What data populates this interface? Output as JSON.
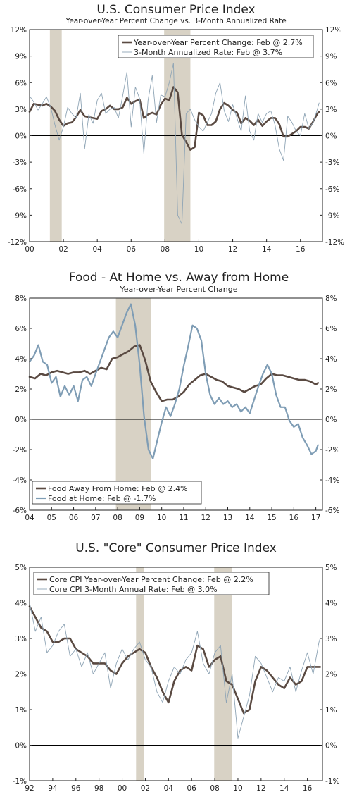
{
  "chart_data": [
    {
      "type": "line",
      "title": "U.S. Consumer Price Index",
      "subtitle": "Year-over-Year Percent Change vs. 3-Month Annualized Rate",
      "x_ticks": [
        "00",
        "02",
        "04",
        "06",
        "08",
        "10",
        "12",
        "14",
        "16"
      ],
      "x_tick_values": [
        2000,
        2002,
        2004,
        2006,
        2008,
        2010,
        2012,
        2014,
        2016
      ],
      "xlim": [
        2000,
        2017.3
      ],
      "ylim": [
        -12,
        12
      ],
      "y_ticks": [
        "-12%",
        "-9%",
        "-6%",
        "-3%",
        "0%",
        "3%",
        "6%",
        "9%",
        "12%"
      ],
      "y_tick_values": [
        -12,
        -9,
        -6,
        -3,
        0,
        3,
        6,
        9,
        12
      ],
      "recessions": [
        [
          2001.2,
          2001.9
        ],
        [
          2007.95,
          2009.5
        ]
      ],
      "legend_position": "top-right",
      "series": [
        {
          "name": "Year-over-Year Percent Change: Feb @ 2.7%",
          "color": "#5a4a42",
          "style": "thick",
          "x": [
            2000,
            2000.25,
            2000.5,
            2000.75,
            2001,
            2001.25,
            2001.5,
            2001.75,
            2002,
            2002.25,
            2002.5,
            2002.75,
            2003,
            2003.25,
            2003.5,
            2003.75,
            2004,
            2004.25,
            2004.5,
            2004.75,
            2005,
            2005.25,
            2005.5,
            2005.75,
            2006,
            2006.25,
            2006.5,
            2006.75,
            2007,
            2007.25,
            2007.5,
            2007.75,
            2008,
            2008.25,
            2008.5,
            2008.75,
            2009,
            2009.25,
            2009.5,
            2009.75,
            2010,
            2010.25,
            2010.5,
            2010.75,
            2011,
            2011.25,
            2011.5,
            2011.75,
            2012,
            2012.25,
            2012.5,
            2012.75,
            2013,
            2013.25,
            2013.5,
            2013.75,
            2014,
            2014.25,
            2014.5,
            2014.75,
            2015,
            2015.25,
            2015.5,
            2015.75,
            2016,
            2016.25,
            2016.5,
            2016.75,
            2017,
            2017.1
          ],
          "y": [
            2.7,
            3.6,
            3.5,
            3.4,
            3.6,
            3.3,
            2.8,
            1.8,
            1.1,
            1.4,
            1.5,
            2.1,
            2.9,
            2.2,
            2.1,
            2.0,
            1.9,
            2.8,
            3.0,
            3.4,
            3.0,
            3.0,
            3.2,
            4.3,
            3.6,
            3.9,
            4.1,
            2.0,
            2.4,
            2.6,
            2.4,
            3.5,
            4.2,
            4.0,
            5.5,
            4.9,
            0.1,
            -0.7,
            -1.6,
            -1.3,
            2.6,
            2.3,
            1.2,
            1.2,
            1.6,
            3.0,
            3.7,
            3.4,
            2.9,
            2.6,
            1.4,
            2.0,
            1.7,
            1.2,
            1.8,
            1.1,
            1.6,
            2.0,
            2.0,
            1.3,
            -0.1,
            -0.1,
            0.2,
            0.5,
            1.0,
            1.0,
            0.8,
            1.6,
            2.5,
            2.7
          ]
        },
        {
          "name": "3-Month Annualized Rate: Feb @ 3.7%",
          "color": "#8ea4b5",
          "style": "thin",
          "x": [
            2000,
            2000.25,
            2000.5,
            2000.75,
            2001,
            2001.25,
            2001.5,
            2001.75,
            2002,
            2002.25,
            2002.5,
            2002.75,
            2003,
            2003.25,
            2003.5,
            2003.75,
            2004,
            2004.25,
            2004.5,
            2004.75,
            2005,
            2005.25,
            2005.5,
            2005.75,
            2006,
            2006.25,
            2006.5,
            2006.75,
            2007,
            2007.25,
            2007.5,
            2007.75,
            2008,
            2008.25,
            2008.5,
            2008.75,
            2009,
            2009.25,
            2009.5,
            2009.75,
            2010,
            2010.25,
            2010.5,
            2010.75,
            2011,
            2011.25,
            2011.5,
            2011.75,
            2012,
            2012.25,
            2012.5,
            2012.75,
            2013,
            2013.25,
            2013.5,
            2013.75,
            2014,
            2014.25,
            2014.5,
            2014.75,
            2015,
            2015.25,
            2015.5,
            2015.75,
            2016,
            2016.25,
            2016.5,
            2016.75,
            2017,
            2017.1
          ],
          "y": [
            4.5,
            3.8,
            2.9,
            3.6,
            4.4,
            3.2,
            1.2,
            -0.5,
            1.0,
            3.2,
            2.5,
            2.0,
            4.8,
            -1.5,
            2.4,
            1.4,
            4.0,
            4.8,
            2.5,
            3.0,
            3.2,
            2.0,
            4.5,
            7.2,
            1.0,
            5.5,
            4.2,
            -2.0,
            4.0,
            6.8,
            1.5,
            4.6,
            4.4,
            6.0,
            8.2,
            -9.0,
            -10.0,
            2.5,
            3.0,
            1.8,
            1.0,
            0.5,
            1.5,
            2.5,
            4.8,
            6.0,
            2.8,
            1.6,
            3.5,
            2.0,
            0.5,
            4.5,
            0.5,
            -0.5,
            2.5,
            1.5,
            2.5,
            2.8,
            1.2,
            -1.5,
            -2.8,
            2.2,
            1.5,
            0.5,
            0.0,
            2.5,
            0.8,
            1.5,
            3.0,
            3.7
          ]
        }
      ]
    },
    {
      "type": "line",
      "title": "Food - At Home vs. Away from Home",
      "subtitle": "Year-over-Year Percent Change",
      "x_ticks": [
        "04",
        "05",
        "06",
        "07",
        "08",
        "09",
        "10",
        "11",
        "12",
        "13",
        "14",
        "15",
        "16",
        "17"
      ],
      "x_tick_values": [
        2004,
        2005,
        2006,
        2007,
        2008,
        2009,
        2010,
        2011,
        2012,
        2013,
        2014,
        2015,
        2016,
        2017
      ],
      "xlim": [
        2004,
        2017.3
      ],
      "ylim": [
        -6,
        8
      ],
      "y_ticks": [
        "-6%",
        "-4%",
        "-2%",
        "0%",
        "2%",
        "4%",
        "6%",
        "8%"
      ],
      "y_tick_values": [
        -6,
        -4,
        -2,
        0,
        2,
        4,
        6,
        8
      ],
      "recessions": [
        [
          2007.92,
          2009.5
        ]
      ],
      "legend_position": "bottom-left",
      "series": [
        {
          "name": "Food Away From Home: Feb @ 2.4%",
          "color": "#5a4a42",
          "style": "thick",
          "x": [
            2004,
            2004.25,
            2004.5,
            2004.75,
            2005,
            2005.25,
            2005.5,
            2005.75,
            2006,
            2006.25,
            2006.5,
            2006.75,
            2007,
            2007.25,
            2007.5,
            2007.75,
            2008,
            2008.25,
            2008.5,
            2008.75,
            2009,
            2009.25,
            2009.5,
            2009.75,
            2010,
            2010.25,
            2010.5,
            2010.75,
            2011,
            2011.25,
            2011.5,
            2011.75,
            2012,
            2012.25,
            2012.5,
            2012.75,
            2013,
            2013.25,
            2013.5,
            2013.75,
            2014,
            2014.25,
            2014.5,
            2014.75,
            2015,
            2015.25,
            2015.5,
            2015.75,
            2016,
            2016.25,
            2016.5,
            2016.75,
            2017,
            2017.1
          ],
          "y": [
            2.8,
            2.7,
            3.0,
            2.9,
            3.1,
            3.2,
            3.1,
            3.0,
            3.1,
            3.1,
            3.2,
            3.0,
            3.2,
            3.4,
            3.3,
            4.0,
            4.1,
            4.3,
            4.5,
            4.8,
            4.9,
            3.9,
            2.5,
            1.8,
            1.2,
            1.3,
            1.3,
            1.5,
            1.8,
            2.3,
            2.6,
            2.9,
            3.0,
            2.8,
            2.6,
            2.5,
            2.2,
            2.1,
            2.0,
            1.8,
            2.0,
            2.2,
            2.3,
            2.7,
            3.0,
            2.9,
            2.9,
            2.8,
            2.7,
            2.6,
            2.6,
            2.5,
            2.3,
            2.4
          ]
        },
        {
          "name": "Food at Home: Feb @ -1.7%",
          "color": "#7f9db5",
          "style": "medium",
          "x": [
            2004,
            2004.2,
            2004.4,
            2004.6,
            2004.8,
            2005,
            2005.2,
            2005.4,
            2005.6,
            2005.8,
            2006,
            2006.2,
            2006.4,
            2006.6,
            2006.8,
            2007,
            2007.2,
            2007.4,
            2007.6,
            2007.8,
            2008,
            2008.2,
            2008.4,
            2008.6,
            2008.8,
            2009,
            2009.2,
            2009.4,
            2009.6,
            2009.8,
            2010,
            2010.2,
            2010.4,
            2010.6,
            2010.8,
            2011,
            2011.2,
            2011.4,
            2011.6,
            2011.8,
            2012,
            2012.2,
            2012.4,
            2012.6,
            2012.8,
            2013,
            2013.2,
            2013.4,
            2013.6,
            2013.8,
            2014,
            2014.2,
            2014.4,
            2014.6,
            2014.8,
            2015,
            2015.2,
            2015.4,
            2015.6,
            2015.8,
            2016,
            2016.2,
            2016.4,
            2016.6,
            2016.8,
            2017,
            2017.1
          ],
          "y": [
            3.8,
            4.2,
            4.9,
            3.8,
            3.6,
            2.4,
            2.8,
            1.5,
            2.2,
            1.6,
            2.2,
            1.2,
            2.6,
            2.8,
            2.2,
            3.0,
            3.8,
            4.6,
            5.4,
            5.8,
            5.4,
            6.2,
            7.0,
            7.6,
            6.2,
            3.6,
            0.2,
            -2.0,
            -2.6,
            -1.4,
            -0.2,
            0.8,
            0.2,
            1.0,
            2.0,
            3.5,
            4.8,
            6.2,
            6.0,
            5.2,
            3.0,
            1.6,
            1.0,
            1.4,
            1.0,
            1.2,
            0.8,
            1.0,
            0.5,
            0.8,
            0.4,
            1.3,
            2.2,
            3.0,
            3.6,
            3.0,
            1.6,
            0.8,
            0.8,
            -0.1,
            -0.5,
            -0.3,
            -1.2,
            -1.7,
            -2.3,
            -2.1,
            -1.7
          ]
        }
      ]
    },
    {
      "type": "line",
      "title": "U.S. \"Core\" Consumer Price Index",
      "x_ticks": [
        "92",
        "94",
        "96",
        "98",
        "00",
        "02",
        "04",
        "06",
        "08",
        "10",
        "12",
        "14",
        "16"
      ],
      "x_tick_values": [
        1992,
        1994,
        1996,
        1998,
        2000,
        2002,
        2004,
        2006,
        2008,
        2010,
        2012,
        2014,
        2016
      ],
      "xlim": [
        1992,
        2017.3
      ],
      "ylim": [
        -1,
        5
      ],
      "y_ticks": [
        "-1%",
        "0%",
        "1%",
        "2%",
        "3%",
        "4%",
        "5%"
      ],
      "y_tick_values": [
        -1,
        0,
        1,
        2,
        3,
        4,
        5
      ],
      "recessions": [
        [
          2001.2,
          2001.9
        ],
        [
          2007.95,
          2009.5
        ]
      ],
      "legend_position": "top-left",
      "series": [
        {
          "name": "Core CPI Year-over-Year Percent Change: Feb @ 2.2%",
          "color": "#5a4a42",
          "style": "thick",
          "x": [
            1992,
            1992.5,
            1993,
            1993.5,
            1994,
            1994.5,
            1995,
            1995.5,
            1996,
            1996.5,
            1997,
            1997.5,
            1998,
            1998.5,
            1999,
            1999.5,
            2000,
            2000.5,
            2001,
            2001.5,
            2002,
            2002.5,
            2003,
            2003.5,
            2004,
            2004.5,
            2005,
            2005.5,
            2006,
            2006.5,
            2007,
            2007.5,
            2008,
            2008.5,
            2009,
            2009.5,
            2010,
            2010.5,
            2011,
            2011.5,
            2012,
            2012.5,
            2013,
            2013.5,
            2014,
            2014.5,
            2015,
            2015.5,
            2016,
            2016.5,
            2017,
            2017.1
          ],
          "y": [
            3.9,
            3.6,
            3.3,
            3.2,
            2.9,
            2.9,
            3.0,
            3.0,
            2.7,
            2.6,
            2.5,
            2.3,
            2.3,
            2.3,
            2.1,
            2.0,
            2.3,
            2.5,
            2.6,
            2.7,
            2.6,
            2.2,
            1.9,
            1.5,
            1.2,
            1.8,
            2.1,
            2.2,
            2.1,
            2.8,
            2.7,
            2.2,
            2.4,
            2.5,
            1.8,
            1.7,
            1.3,
            0.9,
            1.0,
            1.8,
            2.2,
            2.1,
            1.9,
            1.7,
            1.6,
            1.9,
            1.7,
            1.8,
            2.2,
            2.2,
            2.2,
            2.2
          ]
        },
        {
          "name": "Core CPI 3-Month Annual Rate: Feb @ 3.0%",
          "color": "#8ea4b5",
          "style": "thin",
          "x": [
            1992,
            1992.5,
            1993,
            1993.5,
            1994,
            1994.5,
            1995,
            1995.5,
            1996,
            1996.5,
            1997,
            1997.5,
            1998,
            1998.5,
            1999,
            1999.5,
            2000,
            2000.5,
            2001,
            2001.5,
            2002,
            2002.5,
            2003,
            2003.5,
            2004,
            2004.5,
            2005,
            2005.5,
            2006,
            2006.5,
            2007,
            2007.5,
            2008,
            2008.5,
            2009,
            2009.5,
            2010,
            2010.5,
            2011,
            2011.5,
            2012,
            2012.5,
            2013,
            2013.5,
            2014,
            2014.5,
            2015,
            2015.5,
            2016,
            2016.5,
            2017,
            2017.1
          ],
          "y": [
            4.0,
            3.2,
            3.6,
            2.6,
            2.8,
            3.2,
            3.4,
            2.5,
            2.7,
            2.2,
            2.6,
            2.0,
            2.3,
            2.6,
            1.6,
            2.3,
            2.7,
            2.4,
            2.7,
            2.9,
            2.4,
            2.2,
            1.5,
            1.2,
            1.8,
            2.2,
            2.0,
            2.4,
            2.6,
            3.2,
            2.3,
            2.0,
            2.6,
            2.8,
            1.2,
            2.0,
            0.2,
            0.8,
            1.4,
            2.5,
            2.3,
            1.9,
            1.5,
            1.9,
            1.8,
            2.2,
            1.5,
            2.1,
            2.6,
            2.0,
            2.9,
            3.0
          ]
        }
      ]
    }
  ],
  "colors": {
    "recession": "#d8d2c5",
    "axis": "#222222",
    "zero_line": "#000000"
  }
}
